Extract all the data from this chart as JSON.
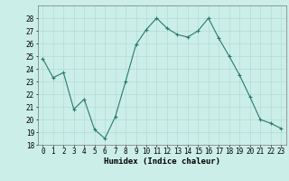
{
  "x": [
    0,
    1,
    2,
    3,
    4,
    5,
    6,
    7,
    8,
    9,
    10,
    11,
    12,
    13,
    14,
    15,
    16,
    17,
    18,
    19,
    20,
    21,
    22,
    23
  ],
  "y": [
    24.8,
    23.3,
    23.7,
    20.8,
    21.6,
    19.2,
    18.5,
    20.2,
    23.0,
    25.9,
    27.1,
    28.0,
    27.2,
    26.7,
    26.5,
    27.0,
    28.0,
    26.4,
    25.0,
    23.5,
    21.8,
    20.0,
    19.7,
    19.3
  ],
  "xlabel": "Humidex (Indice chaleur)",
  "xlim": [
    -0.5,
    23.5
  ],
  "ylim": [
    18,
    29
  ],
  "yticks": [
    18,
    19,
    20,
    21,
    22,
    23,
    24,
    25,
    26,
    27,
    28
  ],
  "xticks": [
    0,
    1,
    2,
    3,
    4,
    5,
    6,
    7,
    8,
    9,
    10,
    11,
    12,
    13,
    14,
    15,
    16,
    17,
    18,
    19,
    20,
    21,
    22,
    23
  ],
  "line_color": "#2a7a6c",
  "marker": "+",
  "bg_color": "#cceee8",
  "grid_color": "#aad8d0",
  "axis_fontsize": 6.5,
  "tick_fontsize": 5.5
}
